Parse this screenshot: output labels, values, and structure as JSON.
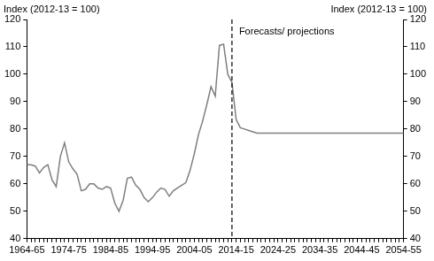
{
  "chart_data": {
    "type": "line",
    "ylabel": "Index (2012-13 = 100)",
    "y2label": "Index (2012-13 = 100)",
    "categories": [
      "1964-65",
      null,
      null,
      null,
      null,
      null,
      null,
      null,
      null,
      null,
      "1974-75",
      null,
      null,
      null,
      null,
      null,
      null,
      null,
      null,
      null,
      "1984-85",
      null,
      null,
      null,
      null,
      null,
      null,
      null,
      null,
      null,
      "1994-95",
      null,
      null,
      null,
      null,
      null,
      null,
      null,
      null,
      null,
      "2004-05",
      null,
      null,
      null,
      null,
      null,
      null,
      null,
      null,
      null,
      "2014-15",
      null,
      null,
      null,
      null,
      null,
      null,
      null,
      null,
      null,
      "2024-25",
      null,
      null,
      null,
      null,
      null,
      null,
      null,
      null,
      null,
      "2034-35",
      null,
      null,
      null,
      null,
      null,
      null,
      null,
      null,
      null,
      "2044-45",
      null,
      null,
      null,
      null,
      null,
      null,
      null,
      null,
      null,
      "2054-55"
    ],
    "values": [
      67,
      67,
      66.5,
      64,
      66,
      67,
      61.5,
      59,
      70,
      75,
      68,
      65.5,
      63.5,
      57.5,
      58,
      60,
      60,
      58.5,
      58,
      59,
      58.5,
      53,
      50,
      54,
      62,
      62.5,
      59.5,
      58,
      55,
      53.5,
      55,
      57,
      58.5,
      58,
      55.5,
      57.5,
      58.5,
      59.5,
      60.5,
      65,
      71,
      78,
      83,
      89,
      95.5,
      92,
      110.5,
      111,
      100,
      97,
      83.5,
      80.5,
      80,
      79.5,
      79,
      78.5,
      78.5,
      78.5,
      78.5,
      78.5,
      78.5,
      78.5,
      78.5,
      78.5,
      78.5,
      78.5,
      78.5,
      78.5,
      78.5,
      78.5,
      78.5,
      78.5,
      78.5,
      78.5,
      78.5,
      78.5,
      78.5,
      78.5,
      78.5,
      78.5,
      78.5,
      78.5,
      78.5,
      78.5,
      78.5,
      78.5,
      78.5,
      78.5,
      78.5,
      78.5,
      78.5
    ],
    "color": "#7f7f7f",
    "ylim": [
      40,
      120
    ],
    "yticks": [
      40,
      50,
      60,
      70,
      80,
      90,
      100,
      110,
      120
    ],
    "y2lim": [
      40,
      120
    ],
    "y2ticks": [
      40,
      50,
      60,
      70,
      80,
      90,
      100,
      110,
      120
    ],
    "grid": false,
    "annotations": [
      {
        "text": "Forecasts/ projections",
        "at": 49,
        "line_style": "dashed"
      }
    ]
  }
}
